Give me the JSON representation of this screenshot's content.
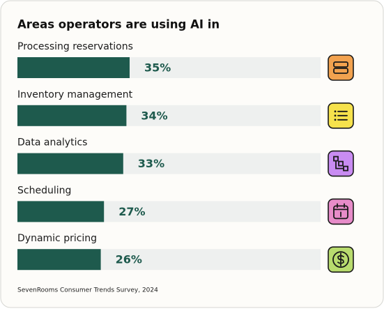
{
  "chart_data": {
    "type": "bar",
    "orientation": "horizontal",
    "title": "Areas operators are using AI in",
    "categories": [
      "Processing reservations",
      "Inventory management",
      "Data analytics",
      "Scheduling",
      "Dynamic pricing"
    ],
    "values": [
      35,
      34,
      33,
      27,
      26
    ],
    "value_labels": [
      "35%",
      "34%",
      "33%",
      "27%",
      "26%"
    ],
    "color": "#1e5a4d",
    "source": "SevenRooms Consumer Trends Survey, 2024"
  }
}
